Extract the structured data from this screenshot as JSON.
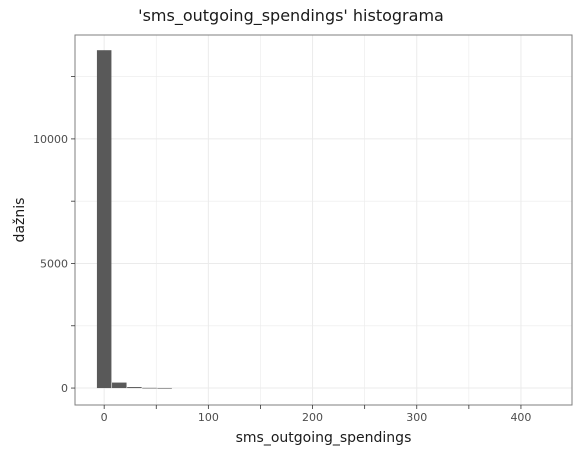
{
  "chart_data": {
    "type": "bar",
    "title": "'sms_outgoing_spendings' histograma",
    "xlabel": "sms_outgoing_spendings",
    "ylabel": "dažnis",
    "x_ticks": [
      0,
      100,
      200,
      300,
      400
    ],
    "y_ticks": [
      0,
      5000,
      10000
    ],
    "xlim": [
      -28,
      449
    ],
    "ylim": [
      -680,
      14170
    ],
    "bin_width": 14.5,
    "bins": [
      {
        "x": 0,
        "value": 13560
      },
      {
        "x": 14.5,
        "value": 220
      },
      {
        "x": 29,
        "value": 40
      },
      {
        "x": 43.5,
        "value": 8
      },
      {
        "x": 58,
        "value": 3
      }
    ],
    "grid": true,
    "colors": {
      "bar": "#595959",
      "grid": "#ebebeb",
      "border": "#7f7f7f"
    }
  }
}
